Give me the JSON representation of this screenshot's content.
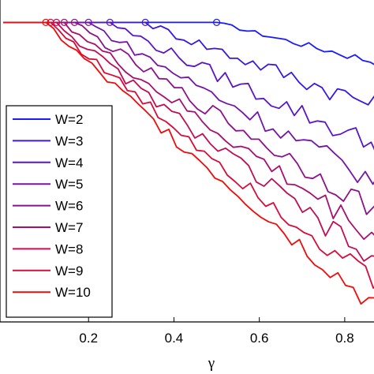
{
  "chart_data": {
    "type": "line",
    "title": "",
    "xlabel": "γ",
    "ylabel": "",
    "xlim": [
      0,
      0.9
    ],
    "ylim": [
      0,
      1.08
    ],
    "xticks": [
      0.2,
      0.4,
      0.6,
      0.8
    ],
    "xtick_labels": [
      "0.2",
      "0.4",
      "0.6",
      "0.8"
    ],
    "grid": false,
    "legend_position": "left",
    "marker_y": 1.0,
    "series": [
      {
        "name": "W=2",
        "color": "#1a1aff",
        "threshold": 0.5,
        "end": 0.86,
        "x": [],
        "y": []
      },
      {
        "name": "W=3",
        "color": "#3a18e0",
        "threshold": 0.333,
        "end": 0.71,
        "x": [],
        "y": []
      },
      {
        "name": "W=4",
        "color": "#5a16c4",
        "threshold": 0.25,
        "end": 0.57,
        "x": [],
        "y": []
      },
      {
        "name": "W=5",
        "color": "#7414a8",
        "threshold": 0.2,
        "end": 0.45,
        "x": [],
        "y": []
      },
      {
        "name": "W=6",
        "color": "#8c128c",
        "threshold": 0.167,
        "end": 0.35,
        "x": [],
        "y": []
      },
      {
        "name": "W=7",
        "color": "#a61070",
        "threshold": 0.143,
        "end": 0.26,
        "x": [],
        "y": []
      },
      {
        "name": "W=8",
        "color": "#c00e54",
        "threshold": 0.125,
        "end": 0.17,
        "x": [],
        "y": []
      },
      {
        "name": "W=9",
        "color": "#d80c38",
        "threshold": 0.111,
        "end": 0.1,
        "x": [],
        "y": []
      },
      {
        "name": "W=10",
        "color": "#f00a0a",
        "threshold": 0.1,
        "end": 0.02,
        "x": [],
        "y": []
      }
    ]
  }
}
